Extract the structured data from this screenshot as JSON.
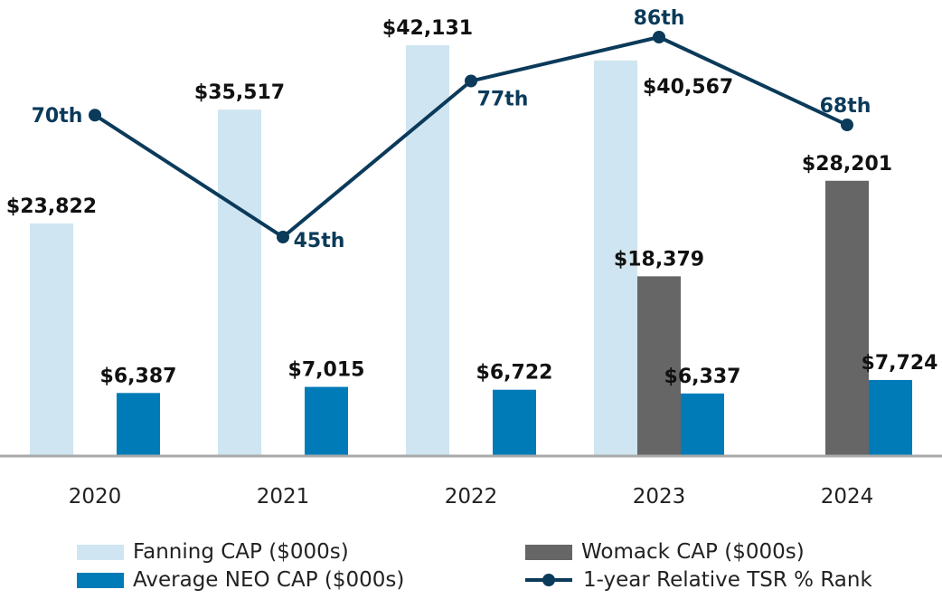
{
  "chart_data": {
    "type": "bar",
    "categories": [
      "2020",
      "2021",
      "2022",
      "2023",
      "2024"
    ],
    "ylim": [
      0,
      46000
    ],
    "grid": false,
    "legend_position": "bottom",
    "series": [
      {
        "name": "Fanning CAP ($000s)",
        "type": "bar",
        "color": "#cfe5f1",
        "values": [
          23822,
          35517,
          42131,
          40567,
          null
        ],
        "labels": [
          "$23,822",
          "$35,517",
          "$42,131",
          "$40,567",
          ""
        ]
      },
      {
        "name": "Womack CAP ($000s)",
        "type": "bar",
        "color": "#666666",
        "values": [
          null,
          null,
          null,
          18379,
          28201
        ],
        "labels": [
          "",
          "",
          "",
          "$18,379",
          "$28,201"
        ]
      },
      {
        "name": "Average NEO CAP ($000s)",
        "type": "bar",
        "color": "#007bb8",
        "values": [
          6387,
          7015,
          6722,
          6337,
          7724
        ],
        "labels": [
          "$6,387",
          "$7,015",
          "$6,722",
          "$6,337",
          "$7,724"
        ]
      },
      {
        "name": "1-year Relative TSR % Rank",
        "type": "line",
        "color": "#0b3a5a",
        "values": [
          70,
          45,
          77,
          86,
          68
        ],
        "labels": [
          "70th",
          "45th",
          "77th",
          "86th",
          "68th"
        ],
        "ylim": [
          0,
          100
        ]
      }
    ]
  },
  "legend": {
    "fanning": "Fanning CAP ($000s)",
    "womack": "Womack CAP ($000s)",
    "neo": "Average NEO CAP ($000s)",
    "tsr": "1-year Relative TSR % Rank"
  },
  "colors": {
    "fanning": "#cfe5f1",
    "womack": "#666666",
    "neo": "#007bb8",
    "tsr": "#0b3a5a",
    "axis": "#a9a9a9"
  }
}
